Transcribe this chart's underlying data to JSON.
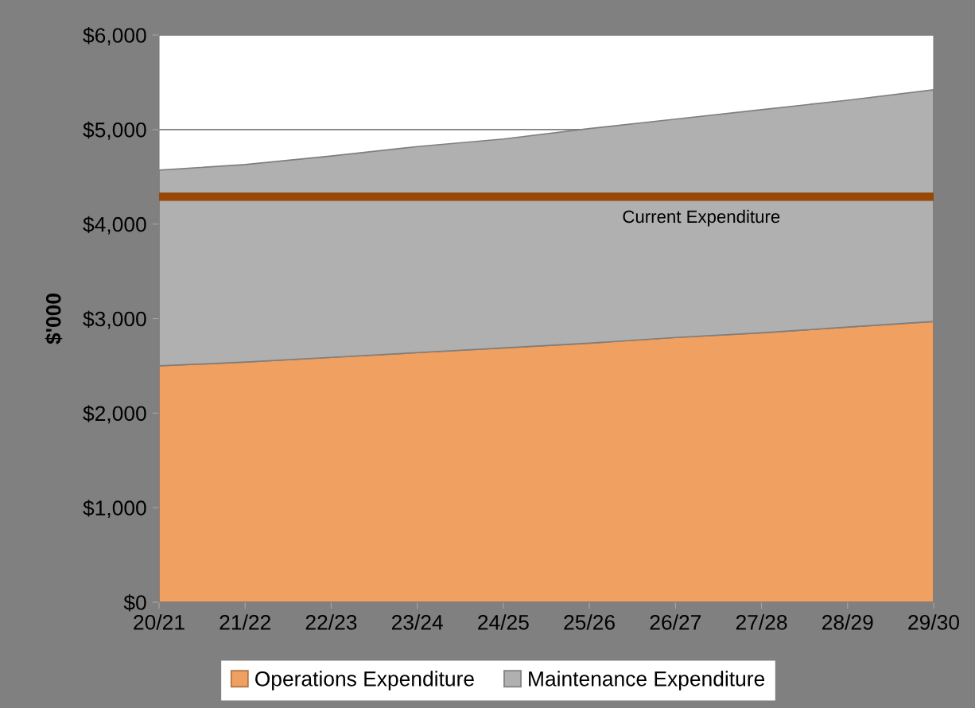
{
  "chart_data": {
    "type": "area",
    "stacked": true,
    "ylabel": "$'000",
    "categories": [
      "20/21",
      "21/22",
      "22/23",
      "23/24",
      "24/25",
      "25/26",
      "26/27",
      "27/28",
      "28/29",
      "29/30"
    ],
    "series": [
      {
        "name": "Operations Expenditure",
        "color": "#f0a060",
        "values": [
          2500,
          2540,
          2590,
          2640,
          2690,
          2740,
          2800,
          2850,
          2910,
          2970
        ]
      },
      {
        "name": "Maintenance Expenditure",
        "color": "#b0b0b0",
        "values": [
          2070,
          2090,
          2130,
          2180,
          2210,
          2270,
          2310,
          2360,
          2400,
          2450
        ]
      }
    ],
    "ylim": [
      0,
      6000
    ],
    "yticks": [
      {
        "value": 0,
        "label": "$0"
      },
      {
        "value": 1000,
        "label": "$1,000"
      },
      {
        "value": 2000,
        "label": "$2,000"
      },
      {
        "value": 3000,
        "label": "$3,000"
      },
      {
        "value": 4000,
        "label": "$4,000"
      },
      {
        "value": 5000,
        "label": "$5,000"
      },
      {
        "value": 6000,
        "label": "$6,000"
      }
    ],
    "grid": "y",
    "legend": "bottom",
    "ref_lines": [
      {
        "axis": "y",
        "value": 4290,
        "label": "Current Expenditure",
        "color": "#974706",
        "line_style": "solid"
      }
    ]
  }
}
